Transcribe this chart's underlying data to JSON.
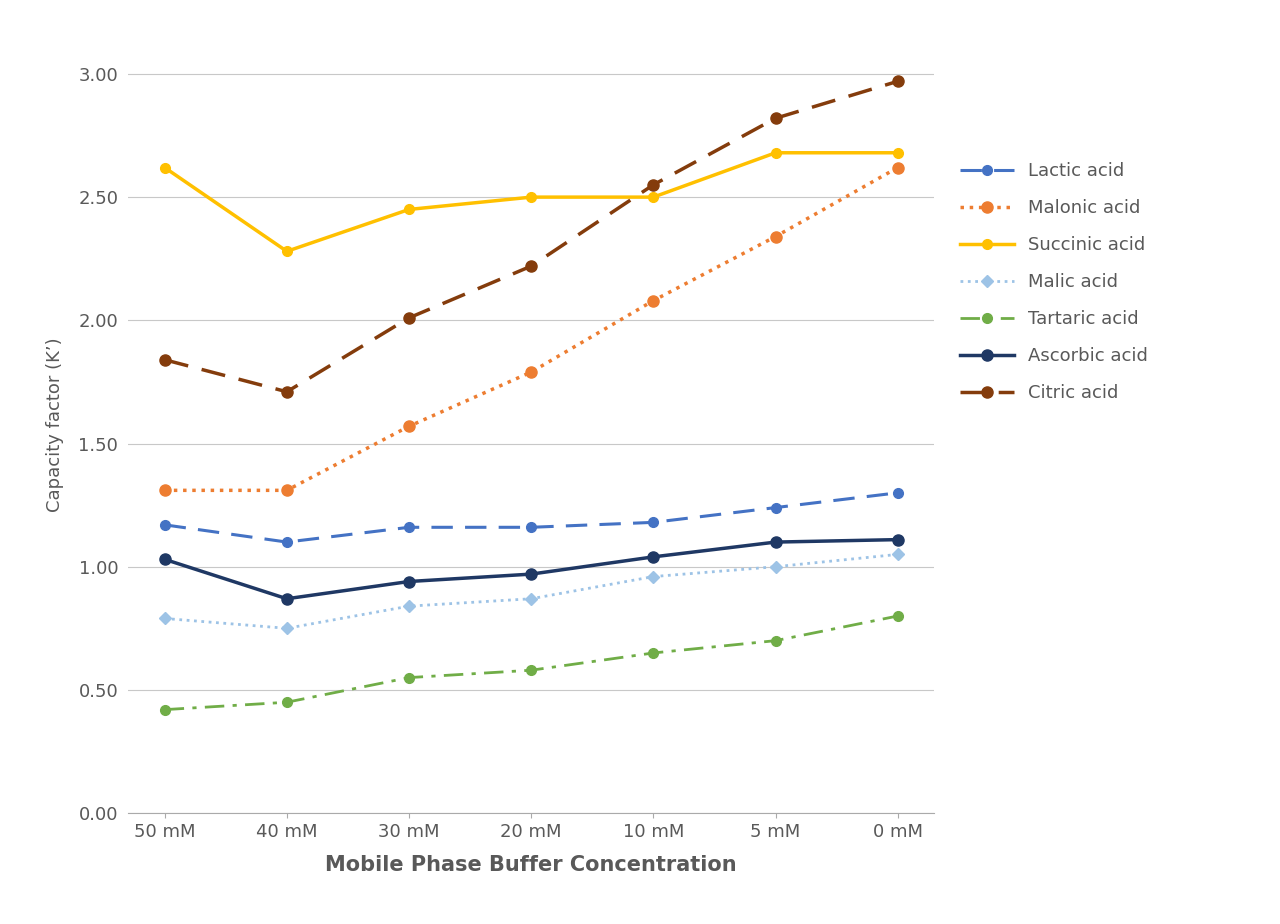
{
  "x_labels": [
    "50 mM",
    "40 mM",
    "30 mM",
    "20 mM",
    "10 mM",
    "5 mM",
    "0 mM"
  ],
  "x_positions": [
    0,
    1,
    2,
    3,
    4,
    5,
    6
  ],
  "series": {
    "Lactic acid": {
      "values": [
        1.17,
        1.1,
        1.16,
        1.16,
        1.18,
        1.24,
        1.3
      ],
      "color": "#4472C4",
      "marker": "o",
      "linewidth": 2.2,
      "markersize": 7,
      "style": "dashed"
    },
    "Malonic acid": {
      "values": [
        1.31,
        1.31,
        1.57,
        1.79,
        2.08,
        2.34,
        2.62
      ],
      "color": "#ED7D31",
      "marker": "o",
      "linewidth": 2.5,
      "markersize": 8,
      "style": "dotted"
    },
    "Succinic acid": {
      "values": [
        2.62,
        2.28,
        2.45,
        2.5,
        2.5,
        2.68,
        2.68
      ],
      "color": "#FFC000",
      "marker": "o",
      "linewidth": 2.5,
      "markersize": 7,
      "style": "solid"
    },
    "Malic acid": {
      "values": [
        0.79,
        0.75,
        0.84,
        0.87,
        0.96,
        1.0,
        1.05
      ],
      "color": "#9DC3E6",
      "marker": "D",
      "linewidth": 2.0,
      "markersize": 6,
      "style": "dotted"
    },
    "Tartaric acid": {
      "values": [
        0.42,
        0.45,
        0.55,
        0.58,
        0.65,
        0.7,
        0.8
      ],
      "color": "#70AD47",
      "marker": "o",
      "linewidth": 2.0,
      "markersize": 7,
      "style": "dashdot"
    },
    "Ascorbic acid": {
      "values": [
        1.03,
        0.87,
        0.94,
        0.97,
        1.04,
        1.1,
        1.11
      ],
      "color": "#1F3864",
      "marker": "o",
      "linewidth": 2.5,
      "markersize": 8,
      "style": "solid"
    },
    "Citric acid": {
      "values": [
        1.84,
        1.71,
        2.01,
        2.22,
        2.55,
        2.82,
        2.97
      ],
      "color": "#843C0C",
      "marker": "o",
      "linewidth": 2.5,
      "markersize": 8,
      "style": "dashed"
    }
  },
  "xlabel": "Mobile Phase Buffer Concentration",
  "ylabel": "Capacity factor (K’)",
  "ylim": [
    0.0,
    3.15
  ],
  "yticks": [
    0.0,
    0.5,
    1.0,
    1.5,
    2.0,
    2.5,
    3.0
  ],
  "background_color": "#FFFFFF",
  "grid_color": "#C8C8C8",
  "tick_color": "#595959",
  "label_color": "#595959"
}
